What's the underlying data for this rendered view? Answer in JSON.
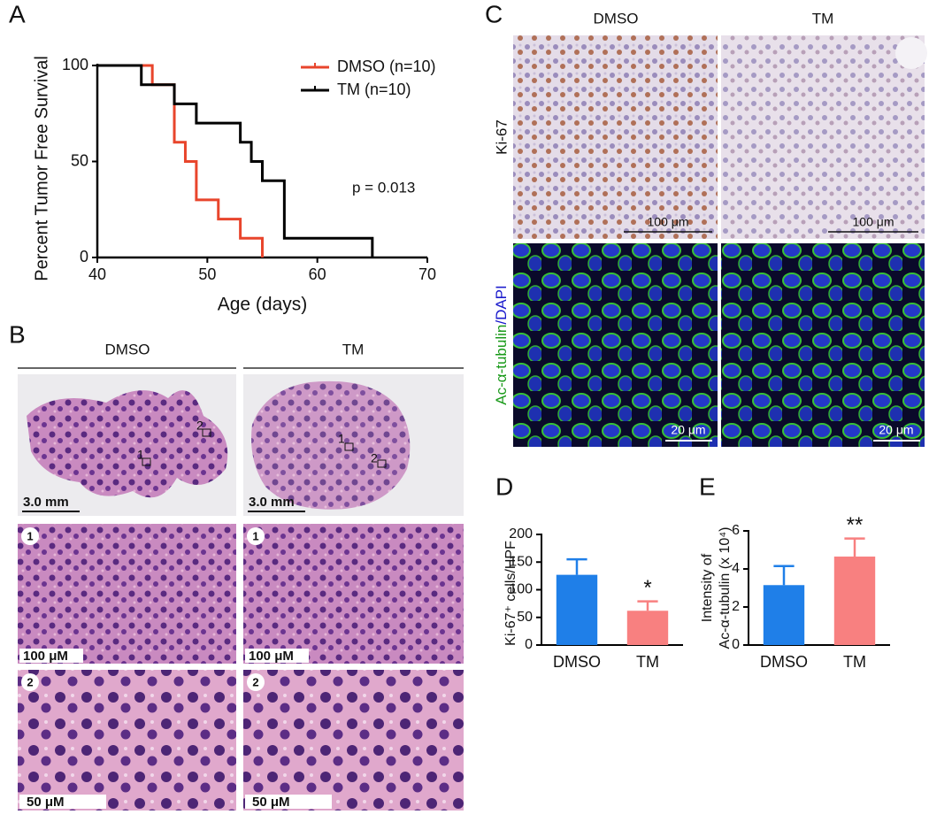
{
  "panel_letters": [
    "A",
    "B",
    "C",
    "D",
    "E"
  ],
  "histology": {
    "columns": [
      "DMSO",
      "TM"
    ],
    "scale_bars": [
      "3.0 mm",
      "100 μM",
      "50 μM"
    ],
    "insets": [
      "1",
      "2"
    ]
  },
  "staining": {
    "columns": [
      "DMSO",
      "TM"
    ],
    "row_label": "Ki-67",
    "tubulin_label": "Ac-α-tubulin",
    "dapi_label": "/DAPI",
    "scale_bars": [
      "100 μm",
      "20 μm"
    ]
  },
  "chart_data": [
    {
      "type": "step",
      "xlabel": "Age (days)",
      "ylabel": "Percent Tumor Free Survival",
      "xlim": [
        40,
        70
      ],
      "xticks": [
        40,
        50,
        60,
        70
      ],
      "ylim": [
        0,
        100
      ],
      "yticks": [
        0,
        50,
        100
      ],
      "annotation": "p = 0.013",
      "series": [
        {
          "name": "DMSO (n=10)",
          "color": "#e8452c",
          "x": [
            40,
            45,
            47,
            48,
            49,
            51,
            53,
            55
          ],
          "values": [
            100,
            90,
            60,
            50,
            30,
            20,
            10,
            0
          ]
        },
        {
          "name": "TM (n=10)",
          "color": "#000000",
          "x": [
            40,
            44,
            47,
            49,
            53,
            54,
            55,
            57,
            65
          ],
          "values": [
            100,
            90,
            80,
            70,
            60,
            50,
            40,
            10,
            0
          ]
        }
      ]
    },
    {
      "type": "bar",
      "ylabel": "Ki-67⁺ cells/HPF",
      "categories": [
        "DMSO",
        "TM"
      ],
      "values": [
        127,
        62
      ],
      "errors": [
        28,
        17
      ],
      "colors": [
        "#1f7fe8",
        "#f88080"
      ],
      "ylim": [
        0,
        200
      ],
      "yticks": [
        0,
        50,
        100,
        150,
        200
      ],
      "significance_label": "*"
    },
    {
      "type": "bar",
      "ylabel": [
        "Intensity of",
        "Ac-α-tubulin (x 10⁴)"
      ],
      "categories": [
        "DMSO",
        "TM"
      ],
      "values": [
        3.15,
        4.65
      ],
      "errors": [
        1.0,
        0.95
      ],
      "colors": [
        "#1f7fe8",
        "#f88080"
      ],
      "ylim": [
        0,
        6
      ],
      "yticks": [
        0,
        2,
        4,
        6
      ],
      "significance_label": "**"
    }
  ]
}
